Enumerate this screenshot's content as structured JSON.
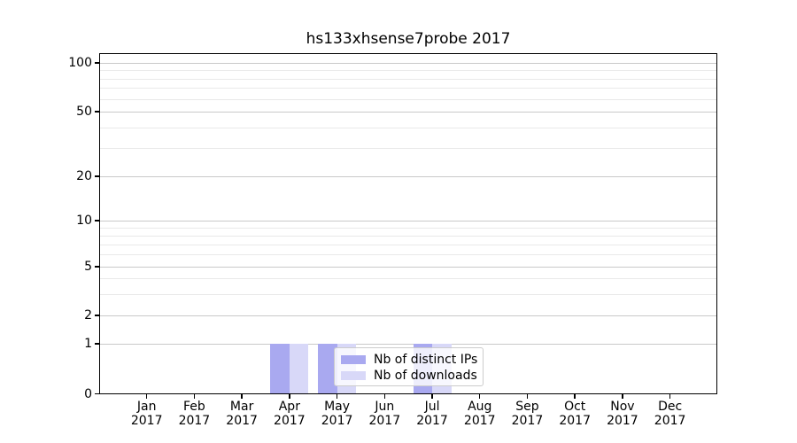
{
  "title": "hs133xhsense7probe 2017",
  "legend": {
    "items": [
      {
        "label": "Nb of distinct IPs",
        "color": "#a9a9f0"
      },
      {
        "label": "Nb of downloads",
        "color": "#d8d8f8"
      }
    ]
  },
  "axes": {
    "x_year": "2017",
    "x_months": [
      "Jan",
      "Feb",
      "Mar",
      "Apr",
      "May",
      "Jun",
      "Jul",
      "Aug",
      "Sep",
      "Oct",
      "Nov",
      "Dec"
    ],
    "y_tick_labels": [
      "0",
      "1",
      "2",
      "5",
      "10",
      "20",
      "50",
      "100"
    ]
  },
  "colors": {
    "grid_major": "#c9c9c9",
    "grid_minor": "#e9e9e9",
    "spine": "#000000",
    "background": "#ffffff"
  },
  "chart_data": {
    "type": "bar",
    "title": "hs133xhsense7probe 2017",
    "categories": [
      "Jan 2017",
      "Feb 2017",
      "Mar 2017",
      "Apr 2017",
      "May 2017",
      "Jun 2017",
      "Jul 2017",
      "Aug 2017",
      "Sep 2017",
      "Oct 2017",
      "Nov 2017",
      "Dec 2017"
    ],
    "series": [
      {
        "name": "Nb of distinct IPs",
        "color": "#a9a9f0",
        "values": [
          0,
          0,
          0,
          1,
          1,
          0,
          1,
          0,
          0,
          0,
          0,
          0
        ]
      },
      {
        "name": "Nb of downloads",
        "color": "#d8d8f8",
        "values": [
          0,
          0,
          0,
          1,
          1,
          0,
          1,
          0,
          0,
          0,
          0,
          0
        ]
      }
    ],
    "yscale": "symlog",
    "ylim": [
      0,
      115
    ],
    "y_major_ticks": [
      0,
      1,
      2,
      5,
      10,
      20,
      50,
      100
    ],
    "y_minor_gridlines": [
      3,
      4,
      6,
      7,
      8,
      9,
      30,
      40,
      60,
      70,
      80,
      90
    ],
    "grid": "on",
    "legend_position": "lower center"
  }
}
